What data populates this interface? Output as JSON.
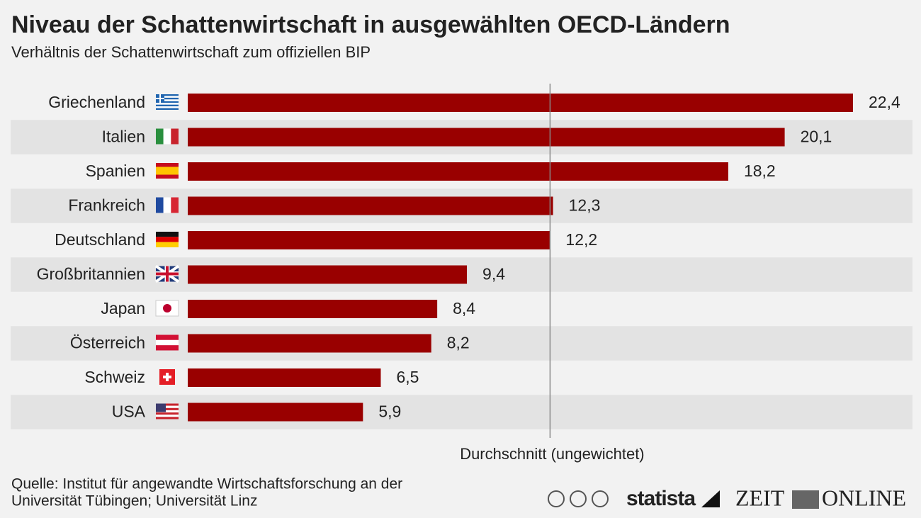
{
  "chart_data": {
    "type": "bar",
    "orientation": "horizontal",
    "title": "Niveau der Schattenwirtschaft in ausgewählten OECD-Ländern",
    "subtitle": "Verhältnis der Schattenwirtschaft zum offiziellen BIP",
    "categories": [
      "Griechenland",
      "Italien",
      "Spanien",
      "Frankreich",
      "Deutschland",
      "Großbritannien",
      "Japan",
      "Österreich",
      "Schweiz",
      "USA"
    ],
    "values": [
      22.4,
      20.1,
      18.2,
      12.3,
      12.2,
      9.4,
      8.4,
      8.2,
      6.5,
      5.9
    ],
    "value_labels": [
      "22,4",
      "20,1",
      "18,2",
      "12,3",
      "12,2",
      "9,4",
      "8,4",
      "8,2",
      "6,5",
      "5,9"
    ],
    "color": "#990000",
    "average": {
      "value": 12.2,
      "label": "Durchschnitt (ungewichtet)"
    },
    "source": [
      "Quelle: Institut für angewandte Wirtschaftsforschung an der",
      "Universität Tübingen; Universität Linz"
    ],
    "logos": [
      "statista",
      "ZEIT",
      "ONLINE"
    ]
  }
}
